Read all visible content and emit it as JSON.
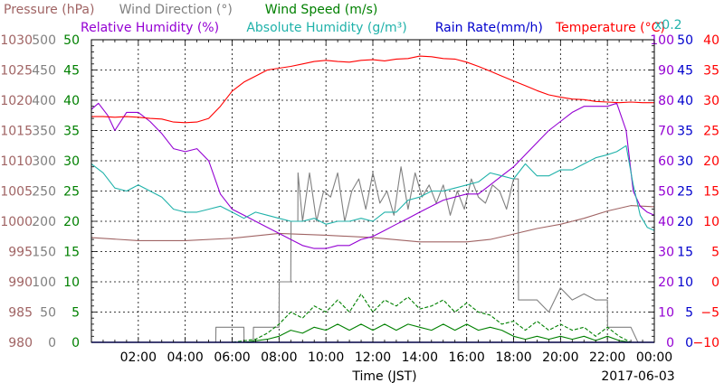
{
  "chart_data": {
    "type": "line",
    "legend_line1": [
      {
        "name": "Pressure (hPa)",
        "color": "#a06464"
      },
      {
        "name": "Wind Direction (°)",
        "color": "#808080"
      },
      {
        "name": "Wind Speed (m/s)",
        "color": "#008000"
      }
    ],
    "legend_line2": [
      {
        "name": "Relative Humidity (%)",
        "color": "#9400d3"
      },
      {
        "name": "Absolute Humidity (g/m³)",
        "color": "#20b2aa"
      },
      {
        "name": "Rain Rate(mm/h)",
        "color": "#0000cd"
      },
      {
        "name": "Temperature (°C)",
        "color": "#ff0000"
      }
    ],
    "x_scale_note": "x0.2",
    "xlabel": "Time (JST)",
    "date": "2017-06-03",
    "xlim": [
      0,
      24
    ],
    "x_ticks": [
      "02:00",
      "04:00",
      "06:00",
      "08:00",
      "10:00",
      "12:00",
      "14:00",
      "16:00",
      "18:00",
      "20:00",
      "22:00",
      "00:00"
    ],
    "x_tick_values": [
      2,
      4,
      6,
      8,
      10,
      12,
      14,
      16,
      18,
      20,
      22,
      24
    ],
    "grid": true,
    "axes": {
      "pressure": {
        "color": "#a06464",
        "range": [
          980,
          1030
        ],
        "ticks": [
          "1030",
          "1025",
          "1020",
          "1015",
          "1010",
          "1005",
          "1000",
          "995",
          "990",
          "985",
          "980"
        ]
      },
      "wind_direction": {
        "color": "#808080",
        "range": [
          0,
          500
        ],
        "ticks": [
          "500",
          "450",
          "400",
          "350",
          "300",
          "250",
          "200",
          "150",
          "100",
          "50",
          "0"
        ]
      },
      "wind_speed": {
        "color": "#008000",
        "range": [
          0,
          50
        ],
        "ticks": [
          "50",
          "45",
          "40",
          "35",
          "30",
          "25",
          "20",
          "15",
          "10",
          "5",
          "0"
        ]
      },
      "humidity": {
        "color": "#9400d3",
        "range": [
          0,
          100
        ],
        "ticks": [
          "100",
          "90",
          "80",
          "70",
          "60",
          "50",
          "40",
          "30",
          "20",
          "10",
          "0"
        ]
      },
      "rain_rate": {
        "color": "#0000cd",
        "range": [
          0,
          50
        ],
        "ticks": [
          "50",
          "45",
          "40",
          "35",
          "30",
          "25",
          "20",
          "15",
          "10",
          "5",
          "0"
        ]
      },
      "temperature": {
        "color": "#ff0000",
        "range": [
          -10,
          40
        ],
        "ticks": [
          "40",
          "35",
          "30",
          "25",
          "20",
          "15",
          "10",
          "5",
          "0",
          "−5",
          "−10"
        ]
      }
    },
    "series": [
      {
        "name": "Pressure",
        "axis": "pressure",
        "color": "#a06464",
        "x": [
          0,
          2,
          4,
          6,
          8,
          10,
          12,
          14,
          16,
          17,
          18,
          19,
          20,
          21,
          22,
          23,
          24
        ],
        "y": [
          997.3,
          996.8,
          996.8,
          997.2,
          998.0,
          997.7,
          997.3,
          996.6,
          996.6,
          997.0,
          997.9,
          998.8,
          999.5,
          1000.5,
          1001.7,
          1002.6,
          1002.4
        ]
      },
      {
        "name": "Wind Direction",
        "axis": "wind_direction",
        "color": "#808080",
        "step": true,
        "x": [
          0,
          5.3,
          5.31,
          6.5,
          6.51,
          6.9,
          6.91,
          8.0,
          8.01,
          8.5,
          8.51,
          8.8,
          8.81,
          9.0,
          9.3,
          9.6,
          9.9,
          10.2,
          10.5,
          10.8,
          11.1,
          11.4,
          11.7,
          12.0,
          12.3,
          12.6,
          12.9,
          13.2,
          13.5,
          13.8,
          14.1,
          14.4,
          14.7,
          15.0,
          15.3,
          15.6,
          15.9,
          16.2,
          16.5,
          16.8,
          17.1,
          17.4,
          17.7,
          18.0,
          18.2,
          18.21,
          18.5,
          19.0,
          19.5,
          20.0,
          20.5,
          21.0,
          21.5,
          22.0,
          22.01,
          23.0,
          23.3,
          24
        ],
        "y": [
          0,
          0,
          25,
          25,
          0,
          0,
          25,
          25,
          100,
          100,
          200,
          200,
          280,
          200,
          280,
          200,
          250,
          240,
          280,
          200,
          250,
          270,
          220,
          280,
          230,
          250,
          210,
          290,
          220,
          280,
          240,
          260,
          230,
          260,
          210,
          250,
          220,
          270,
          240,
          230,
          260,
          250,
          220,
          270,
          270,
          70,
          70,
          70,
          50,
          90,
          70,
          80,
          70,
          70,
          25,
          25,
          0,
          0
        ]
      },
      {
        "name": "Wind Speed",
        "axis": "wind_speed",
        "color": "#008000",
        "x": [
          0,
          6,
          6.5,
          7.5,
          8.0,
          8.5,
          9,
          9.5,
          10,
          10.5,
          11,
          11.5,
          12,
          12.5,
          13,
          13.5,
          14,
          14.5,
          15,
          15.5,
          16,
          16.5,
          17,
          17.5,
          18,
          18.5,
          19,
          19.5,
          20,
          20.5,
          21,
          21.5,
          22,
          22.5,
          23,
          24
        ],
        "y": [
          0,
          0,
          0,
          0.5,
          1.0,
          2.0,
          1.5,
          2.5,
          2.0,
          3.0,
          2.0,
          3.0,
          2.0,
          3.0,
          2.0,
          3.0,
          2.5,
          2.0,
          3.0,
          2.0,
          3.0,
          2.0,
          2.5,
          2.0,
          1.0,
          0.5,
          1.0,
          0.5,
          1.0,
          0.5,
          1.0,
          0.3,
          1.0,
          0.3,
          0,
          0
        ]
      },
      {
        "name": "Wind Speed (gust)",
        "axis": "wind_speed",
        "color": "#008000",
        "dashed": true,
        "x": [
          0,
          6,
          7,
          7.5,
          8.0,
          8.5,
          9,
          9.5,
          10,
          10.5,
          11,
          11.5,
          12,
          12.5,
          13,
          13.5,
          14,
          14.5,
          15,
          15.5,
          16,
          16.5,
          17,
          17.5,
          18,
          18.5,
          19,
          19.5,
          20,
          20.5,
          21,
          21.5,
          22,
          22.5,
          23,
          24
        ],
        "y": [
          0,
          0,
          0.5,
          1.5,
          3.0,
          5.0,
          4.0,
          6.0,
          5.0,
          7.0,
          5.0,
          8.0,
          5.0,
          7.0,
          6.0,
          7.5,
          5.5,
          6.0,
          7.0,
          5.0,
          6.5,
          5.0,
          4.5,
          3.0,
          3.5,
          2.0,
          3.5,
          2.0,
          3.0,
          2.0,
          2.5,
          1.0,
          2.5,
          1.0,
          0,
          0
        ]
      },
      {
        "name": "Relative Humidity",
        "axis": "humidity",
        "color": "#9400d3",
        "x": [
          0,
          0.3,
          0.7,
          1.0,
          1.5,
          2.0,
          2.5,
          3.0,
          3.5,
          4.0,
          4.5,
          5.0,
          5.5,
          6.0,
          6.5,
          7.0,
          7.5,
          8.0,
          8.5,
          9.0,
          9.5,
          10.0,
          10.5,
          11.0,
          11.5,
          12.0,
          12.5,
          13.0,
          13.5,
          14.0,
          14.5,
          15.0,
          15.5,
          16.0,
          16.5,
          17.0,
          17.5,
          18.0,
          18.5,
          19.0,
          19.5,
          20.0,
          20.5,
          21.0,
          21.5,
          22.0,
          22.4,
          22.8,
          23.1,
          23.4,
          23.7,
          24
        ],
        "y": [
          77,
          79,
          75,
          70,
          76,
          76,
          73,
          69,
          64,
          63,
          64,
          60,
          49,
          44,
          42,
          40,
          38,
          36,
          34,
          32,
          31,
          31,
          32,
          32,
          34,
          35,
          37,
          39,
          41,
          43,
          45,
          47,
          48,
          49,
          49,
          52,
          55,
          58,
          62,
          66,
          70,
          73,
          76,
          78,
          78,
          78,
          79,
          70,
          50,
          45,
          43,
          42
        ]
      },
      {
        "name": "Absolute Humidity",
        "axis": "humidity",
        "color": "#20b2aa",
        "x": [
          0,
          0.5,
          1.0,
          1.5,
          2.0,
          2.5,
          3.0,
          3.5,
          4.0,
          4.5,
          5.0,
          5.5,
          6.0,
          6.5,
          7.0,
          7.5,
          8.0,
          8.5,
          9.0,
          9.5,
          10.0,
          10.5,
          11.0,
          11.5,
          12.0,
          12.5,
          13.0,
          13.5,
          14.0,
          14.5,
          15.0,
          15.5,
          16.0,
          16.5,
          17.0,
          17.5,
          18.0,
          18.5,
          19.0,
          19.5,
          20.0,
          20.5,
          21.0,
          21.5,
          22.0,
          22.4,
          22.8,
          23.1,
          23.4,
          23.7,
          24
        ],
        "y": [
          59,
          56,
          51,
          50,
          52,
          50,
          48,
          44,
          43,
          43,
          44,
          45,
          43,
          41,
          43,
          42,
          41,
          40,
          40,
          41,
          39,
          40,
          40,
          41,
          40,
          43,
          43,
          47,
          48,
          50,
          50,
          51,
          52,
          53,
          56,
          55,
          54,
          59,
          55,
          55,
          57,
          57,
          59,
          61,
          62,
          63,
          65,
          52,
          42,
          38,
          37
        ]
      },
      {
        "name": "Rain Rate",
        "axis": "rain_rate",
        "color": "#0000cd",
        "x": [
          0,
          24
        ],
        "y": [
          0,
          0
        ]
      },
      {
        "name": "Temperature",
        "axis": "temperature",
        "color": "#ff0000",
        "x": [
          0,
          0.5,
          1.0,
          1.5,
          2.0,
          2.5,
          3.0,
          3.5,
          4.0,
          4.5,
          5.0,
          5.5,
          6.0,
          6.5,
          7.0,
          7.5,
          8.0,
          8.5,
          9.0,
          9.5,
          10.0,
          10.5,
          11.0,
          11.5,
          12.0,
          12.5,
          13.0,
          13.5,
          14.0,
          14.5,
          15.0,
          15.5,
          16.0,
          16.5,
          17.0,
          17.5,
          18.0,
          18.5,
          19.0,
          19.5,
          20.0,
          20.5,
          21.0,
          21.5,
          22.0,
          22.5,
          23.0,
          23.5,
          24
        ],
        "y": [
          27.3,
          27.3,
          27.2,
          27.3,
          27.2,
          27.0,
          26.9,
          26.4,
          26.3,
          26.4,
          27.0,
          29.0,
          31.5,
          33.0,
          34.0,
          35.0,
          35.3,
          35.6,
          36.0,
          36.4,
          36.6,
          36.4,
          36.3,
          36.6,
          36.7,
          36.5,
          36.8,
          36.9,
          37.3,
          37.2,
          36.9,
          36.8,
          36.3,
          35.6,
          34.8,
          34.0,
          33.2,
          32.4,
          31.6,
          30.9,
          30.5,
          30.2,
          30.1,
          29.8,
          29.7,
          29.6,
          29.7,
          29.6,
          29.6
        ]
      }
    ]
  }
}
